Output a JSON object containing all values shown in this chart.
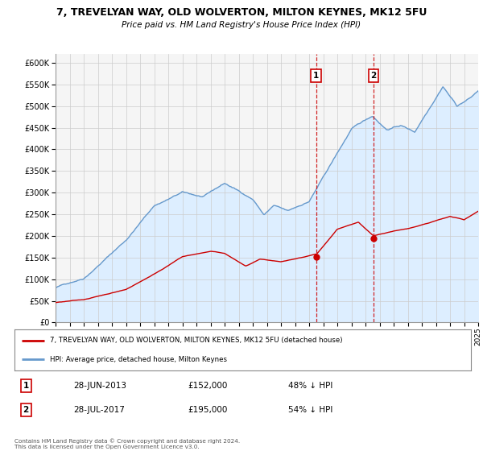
{
  "title": "7, TREVELYAN WAY, OLD WOLVERTON, MILTON KEYNES, MK12 5FU",
  "subtitle": "Price paid vs. HM Land Registry's House Price Index (HPI)",
  "legend_label_red": "7, TREVELYAN WAY, OLD WOLVERTON, MILTON KEYNES, MK12 5FU (detached house)",
  "legend_label_blue": "HPI: Average price, detached house, Milton Keynes",
  "footnote": "Contains HM Land Registry data © Crown copyright and database right 2024.\nThis data is licensed under the Open Government Licence v3.0.",
  "marker1_date": "28-JUN-2013",
  "marker1_price": "£152,000",
  "marker1_hpi": "48% ↓ HPI",
  "marker1_x": 2013.49,
  "marker1_y_red": 152000,
  "marker2_date": "28-JUL-2017",
  "marker2_price": "£195,000",
  "marker2_hpi": "54% ↓ HPI",
  "marker2_x": 2017.57,
  "marker2_y_red": 195000,
  "xlim": [
    1995,
    2025
  ],
  "ylim": [
    0,
    620000
  ],
  "yticks": [
    0,
    50000,
    100000,
    150000,
    200000,
    250000,
    300000,
    350000,
    400000,
    450000,
    500000,
    550000,
    600000
  ],
  "ytick_labels": [
    "£0",
    "£50K",
    "£100K",
    "£150K",
    "£200K",
    "£250K",
    "£300K",
    "£350K",
    "£400K",
    "£450K",
    "£500K",
    "£550K",
    "£600K"
  ],
  "red_color": "#cc0000",
  "blue_color": "#6699cc",
  "blue_fill": "#ddeeff",
  "grid_color": "#cccccc",
  "background_plot": "#f5f5f5",
  "background_fig": "#ffffff"
}
